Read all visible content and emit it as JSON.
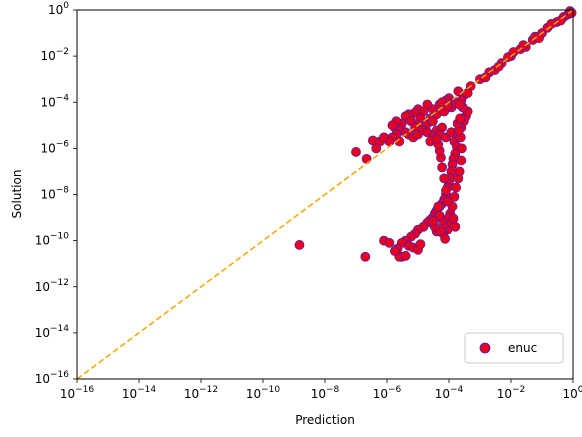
{
  "chart_data": {
    "type": "scatter",
    "xlabel": "Prediction",
    "ylabel": "Solution",
    "xscale": "log",
    "yscale": "log",
    "xlim": [
      1e-16,
      1
    ],
    "ylim": [
      1e-16,
      1
    ],
    "grid": false,
    "legend_position": "bottom-right",
    "x_ticks": [
      {
        "exp": "−16",
        "value": 1e-16
      },
      {
        "exp": "−14",
        "value": 1e-14
      },
      {
        "exp": "−12",
        "value": 1e-12
      },
      {
        "exp": "−10",
        "value": 1e-10
      },
      {
        "exp": "−8",
        "value": 1e-08
      },
      {
        "exp": "−6",
        "value": 1e-06
      },
      {
        "exp": "−4",
        "value": 0.0001
      },
      {
        "exp": "−2",
        "value": 0.01
      },
      {
        "exp": "0",
        "value": 1
      }
    ],
    "y_ticks": [
      {
        "exp": "−16",
        "value": 1e-16
      },
      {
        "exp": "−14",
        "value": 1e-14
      },
      {
        "exp": "−12",
        "value": 1e-12
      },
      {
        "exp": "−10",
        "value": 1e-10
      },
      {
        "exp": "−8",
        "value": 1e-08
      },
      {
        "exp": "−6",
        "value": 1e-06
      },
      {
        "exp": "−4",
        "value": 0.0001
      },
      {
        "exp": "−2",
        "value": 0.01
      },
      {
        "exp": "0",
        "value": 1
      }
    ],
    "tick_base": "10",
    "series": [
      {
        "name": "enuc",
        "marker": "circle",
        "color": "#e8001c",
        "edge_color": "#2d1fd1",
        "points": [
          [
            0.5,
            0.5
          ],
          [
            0.3,
            0.3
          ],
          [
            0.1,
            0.1
          ],
          [
            0.05,
            0.05
          ],
          [
            0.02,
            0.02
          ],
          [
            0.01,
            0.01
          ],
          [
            0.005,
            0.005
          ],
          [
            0.002,
            0.002
          ],
          [
            0.001,
            0.001
          ],
          [
            0.0005,
            0.0005
          ],
          [
            0.7,
            0.65
          ],
          [
            0.15,
            0.17
          ],
          [
            0.03,
            0.025
          ],
          [
            0.008,
            0.009
          ],
          [
            0.003,
            0.0025
          ],
          [
            0.8,
            0.9
          ],
          [
            0.2,
            0.25
          ],
          [
            0.06,
            0.07
          ],
          [
            0.012,
            0.015
          ],
          [
            0.004,
            0.0035
          ],
          [
            0.9,
            0.75
          ],
          [
            0.4,
            0.35
          ],
          [
            0.08,
            0.06
          ],
          [
            0.025,
            0.03
          ],
          [
            0.0015,
            0.0012
          ],
          [
            0.0002,
            0.0003
          ],
          [
            0.0003,
            0.0002
          ],
          [
            0.0001,
            0.00015
          ],
          [
            0.0004,
            0.00025
          ],
          [
            0.00015,
            0.0001
          ],
          [
            0.00025,
            0.00012
          ],
          [
            5e-05,
            8e-05
          ],
          [
            8e-05,
            0.00012
          ],
          [
            3e-05,
            5e-05
          ],
          [
            2e-05,
            8e-05
          ],
          [
            6e-05,
            0.0001
          ],
          [
            0.00012,
            6e-05
          ],
          [
            4e-05,
            3e-05
          ],
          [
            7e-05,
            4e-05
          ],
          [
            9e-05,
            7e-05
          ],
          [
            0.00018,
            9e-05
          ],
          [
            1e-05,
            5e-05
          ],
          [
            1.5e-05,
            4e-05
          ],
          [
            8e-06,
            3.5e-05
          ],
          [
            1.2e-05,
            2e-05
          ],
          [
            5e-06,
            3e-05
          ],
          [
            4e-06,
            2.5e-05
          ],
          [
            6e-06,
            1.5e-05
          ],
          [
            2e-05,
            1.2e-05
          ],
          [
            2.5e-05,
            2e-05
          ],
          [
            3e-05,
            1.5e-05
          ],
          [
            1e-05,
            1e-05
          ],
          [
            8e-06,
            8e-06
          ],
          [
            3e-06,
            1.2e-05
          ],
          [
            1.8e-06,
            8e-06
          ],
          [
            2e-06,
            1.5e-05
          ],
          [
            3e-06,
            6e-06
          ],
          [
            2e-06,
            4e-06
          ],
          [
            1.5e-06,
            3e-06
          ],
          [
            1.2e-06,
            2e-06
          ],
          [
            4e-06,
            5e-06
          ],
          [
            2.5e-06,
            2e-06
          ],
          [
            5e-06,
            4e-06
          ],
          [
            7e-06,
            3e-06
          ],
          [
            1e-05,
            4e-06
          ],
          [
            1.5e-05,
            6e-06
          ],
          [
            2e-05,
            5e-06
          ],
          [
            4e-05,
            6e-06
          ],
          [
            6e-05,
            8e-06
          ],
          [
            3e-05,
            3e-06
          ],
          [
            2.5e-05,
            2e-06
          ],
          [
            5e-05,
            4e-06
          ],
          [
            8e-05,
            3e-06
          ],
          [
            0.00012,
            5e-06
          ],
          [
            0.00015,
            2e-06
          ],
          [
            0.0002,
            4e-06
          ],
          [
            0.00025,
            8e-06
          ],
          [
            0.0003,
            1.5e-05
          ],
          [
            0.00035,
            2.5e-05
          ],
          [
            0.0004,
            4e-05
          ],
          [
            0.00028,
            6e-05
          ],
          [
            0.00022,
            8e-05
          ],
          [
            0.00018,
            1.2e-06
          ],
          [
            0.00016,
            6e-07
          ],
          [
            0.00014,
            3.5e-07
          ],
          [
            0.00013,
            2e-07
          ],
          [
            0.00012,
            1e-07
          ],
          [
            0.00011,
            5e-08
          ],
          [
            0.0001,
            3e-08
          ],
          [
            9e-05,
            2e-08
          ],
          [
            8e-05,
            1e-08
          ],
          [
            7e-05,
            6e-09
          ],
          [
            6e-05,
            4e-09
          ],
          [
            5e-05,
            3e-09
          ],
          [
            4e-05,
            2e-09
          ],
          [
            3.5e-05,
            1.5e-09
          ],
          [
            3e-05,
            1e-09
          ],
          [
            2.5e-05,
            8e-10
          ],
          [
            2e-05,
            6e-10
          ],
          [
            1.5e-05,
            4e-10
          ],
          [
            1e-05,
            3e-10
          ],
          [
            8e-06,
            2e-10
          ],
          [
            6e-06,
            1.5e-10
          ],
          [
            4e-06,
            1e-10
          ],
          [
            3e-06,
            8e-11
          ],
          [
            5e-06,
            6e-11
          ],
          [
            7e-06,
            5e-11
          ],
          [
            1e-05,
            4e-11
          ],
          [
            1.2e-05,
            7e-11
          ],
          [
            9e-05,
            3e-10
          ],
          [
            7e-05,
            5e-10
          ],
          [
            6e-05,
            8e-10
          ],
          [
            5e-05,
            1.2e-09
          ],
          [
            4e-05,
            2.5e-10
          ],
          [
            3.5e-05,
            4e-10
          ],
          [
            3e-05,
            7e-10
          ],
          [
            4.5e-05,
            3e-09
          ],
          [
            0.00011,
            1.5e-09
          ],
          [
            0.00013,
            3e-09
          ],
          [
            0.00015,
            8e-09
          ],
          [
            0.00017,
            2e-08
          ],
          [
            0.0002,
            5e-08
          ],
          [
            0.00022,
            1e-07
          ],
          [
            0.00025,
            3e-07
          ],
          [
            0.00026,
            1e-06
          ],
          [
            0.00024,
            3e-06
          ],
          [
            0.00021,
            6e-06
          ],
          [
            0.00019,
            1.2e-05
          ],
          [
            0.00023,
            2e-05
          ],
          [
            9e-05,
            5e-09
          ],
          [
            8e-05,
            1.5e-08
          ],
          [
            7e-05,
            5e-08
          ],
          [
            6e-05,
            1.5e-07
          ],
          [
            5.5e-05,
            4e-07
          ],
          [
            5e-05,
            8e-07
          ],
          [
            4.5e-05,
            1.5e-06
          ],
          [
            4e-05,
            2.5e-06
          ],
          [
            0.0001,
            1e-09
          ],
          [
            0.00012,
            6e-10
          ],
          [
            0.00014,
            9e-10
          ],
          [
            0.00016,
            4e-10
          ],
          [
            6.5e-05,
            2e-10
          ],
          [
            5.5e-05,
            2.5e-10
          ],
          [
            7.5e-05,
            1.2e-10
          ],
          [
            1e-07,
            7e-07
          ],
          [
            2.2e-07,
            3.5e-07
          ],
          [
            3.5e-07,
            2.2e-06
          ],
          [
            6e-07,
            2e-06
          ],
          [
            4.5e-07,
            1e-06
          ],
          [
            1.5e-06,
            1e-05
          ],
          [
            8e-07,
            3e-06
          ],
          [
            3e-06,
            2e-11
          ],
          [
            2.5e-06,
            2e-11
          ],
          [
            4e-06,
            2.2e-11
          ],
          [
            1.5e-09,
            6.5e-11
          ],
          [
            2e-07,
            2e-11
          ],
          [
            8e-07,
            1e-10
          ],
          [
            1.2e-06,
            8e-11
          ],
          [
            2.2e-06,
            4.5e-11
          ],
          [
            1.8e-06,
            3.5e-11
          ]
        ]
      }
    ],
    "reference_line": {
      "style": "dashed",
      "color": "#f5a500",
      "from": [
        1e-16,
        1e-16
      ],
      "to": [
        1,
        1
      ]
    }
  }
}
